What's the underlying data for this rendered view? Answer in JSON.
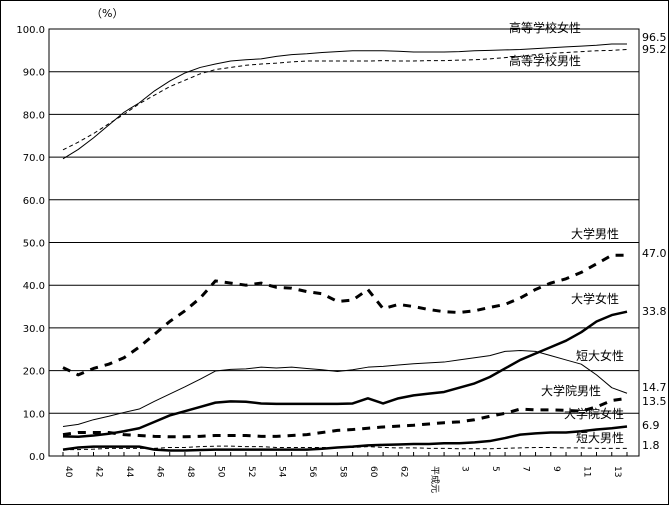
{
  "chart_data": {
    "type": "line",
    "unit_label": "（%）",
    "ylim": [
      0,
      100
    ],
    "yticks": [
      "0.0",
      "10.0",
      "20.0",
      "30.0",
      "40.0",
      "50.0",
      "60.0",
      "70.0",
      "80.0",
      "90.0",
      "100.0"
    ],
    "xtick_labels": [
      "40",
      "42",
      "44",
      "46",
      "48",
      "50",
      "52",
      "54",
      "56",
      "58",
      "60",
      "62",
      "平成元",
      "3",
      "5",
      "7",
      "9",
      "11",
      "13"
    ],
    "grid": true,
    "series": [
      {
        "name": "高等学校女性",
        "end_label": "96.5",
        "style": "thin-solid",
        "values": [
          69.6,
          71.8,
          74.5,
          77.5,
          80.5,
          82.7,
          85.5,
          87.8,
          89.7,
          91.0,
          91.8,
          92.5,
          92.8,
          93.0,
          93.6,
          94.0,
          94.2,
          94.5,
          94.7,
          94.9,
          94.9,
          94.9,
          94.8,
          94.6,
          94.6,
          94.6,
          94.7,
          94.9,
          95.0,
          95.1,
          95.2,
          95.4,
          95.6,
          95.8,
          96.0,
          96.2,
          96.5,
          96.5
        ]
      },
      {
        "name": "高等学校男性",
        "end_label": "95.2",
        "style": "thin-dashed",
        "values": [
          71.7,
          73.5,
          75.5,
          77.8,
          80.0,
          82.5,
          84.5,
          86.5,
          88.0,
          89.5,
          90.5,
          91.0,
          91.5,
          91.8,
          92.0,
          92.3,
          92.5,
          92.5,
          92.5,
          92.5,
          92.5,
          92.6,
          92.5,
          92.5,
          92.6,
          92.6,
          92.7,
          92.8,
          93.0,
          93.3,
          93.6,
          94.0,
          94.3,
          94.5,
          94.7,
          94.9,
          95.0,
          95.2
        ]
      },
      {
        "name": "大学男性",
        "end_label": "47.0",
        "style": "thick-dashed",
        "values": [
          20.7,
          19.0,
          20.5,
          21.5,
          23.0,
          25.5,
          28.5,
          31.5,
          34.0,
          37.0,
          41.0,
          40.5,
          40.0,
          40.5,
          39.5,
          39.3,
          38.5,
          38.0,
          36.2,
          36.5,
          39.0,
          34.5,
          35.5,
          35.0,
          34.3,
          33.8,
          33.6,
          34.0,
          34.8,
          35.5,
          37.0,
          39.0,
          40.5,
          41.5,
          43.0,
          45.0,
          47.0,
          47.0
        ]
      },
      {
        "name": "大学女性",
        "end_label": "33.8",
        "style": "thick-solid",
        "values": [
          4.6,
          4.5,
          4.8,
          5.2,
          5.8,
          6.5,
          8.0,
          9.5,
          10.5,
          11.5,
          12.5,
          12.8,
          12.7,
          12.3,
          12.2,
          12.2,
          12.2,
          12.2,
          12.2,
          12.3,
          13.5,
          12.3,
          13.5,
          14.2,
          14.6,
          15.0,
          16.0,
          17.0,
          18.5,
          20.5,
          22.5,
          24.0,
          25.5,
          27.0,
          29.0,
          31.5,
          33.0,
          33.8
        ]
      },
      {
        "name": "短大女性",
        "end_label": "14.7",
        "style": "thin-solid",
        "values": [
          6.9,
          7.4,
          8.5,
          9.3,
          10.2,
          11.0,
          12.8,
          14.5,
          16.2,
          18.0,
          19.9,
          20.3,
          20.4,
          20.8,
          20.6,
          20.8,
          20.5,
          20.2,
          19.8,
          20.2,
          20.8,
          21.0,
          21.3,
          21.6,
          21.8,
          22.0,
          22.5,
          23.0,
          23.5,
          24.5,
          24.7,
          24.5,
          23.5,
          22.5,
          21.5,
          19.0,
          16.0,
          14.7
        ]
      },
      {
        "name": "大学院男性",
        "end_label": "13.5",
        "style": "thick-dashed",
        "values": [
          5.0,
          5.5,
          5.5,
          5.5,
          5.0,
          4.8,
          4.6,
          4.5,
          4.5,
          4.6,
          4.8,
          4.8,
          4.8,
          4.6,
          4.6,
          4.8,
          5.0,
          5.5,
          6.0,
          6.2,
          6.5,
          6.8,
          7.0,
          7.2,
          7.5,
          7.8,
          8.0,
          8.5,
          9.3,
          10.0,
          11.0,
          10.8,
          10.8,
          10.7,
          10.5,
          11.5,
          13.0,
          13.5
        ]
      },
      {
        "name": "大学院女性",
        "end_label": "6.9",
        "style": "thick-solid",
        "values": [
          1.5,
          2.0,
          2.2,
          2.2,
          2.2,
          2.2,
          1.5,
          1.3,
          1.3,
          1.4,
          1.5,
          1.5,
          1.5,
          1.5,
          1.5,
          1.5,
          1.5,
          1.7,
          2.0,
          2.2,
          2.5,
          2.6,
          2.7,
          2.8,
          2.8,
          3.0,
          3.0,
          3.2,
          3.5,
          4.2,
          5.0,
          5.3,
          5.5,
          5.5,
          5.8,
          6.2,
          6.5,
          6.9
        ]
      },
      {
        "name": "短大男性",
        "end_label": "1.8",
        "style": "thin-dashed",
        "values": [
          1.5,
          1.5,
          1.6,
          1.8,
          1.8,
          1.8,
          1.8,
          2.0,
          2.0,
          2.2,
          2.3,
          2.3,
          2.2,
          2.2,
          2.0,
          2.0,
          2.0,
          2.0,
          2.0,
          2.0,
          2.2,
          2.0,
          1.9,
          1.9,
          1.8,
          1.8,
          1.7,
          1.7,
          1.7,
          1.8,
          1.9,
          2.0,
          2.0,
          1.9,
          1.9,
          1.8,
          1.8,
          1.8
        ]
      }
    ]
  }
}
